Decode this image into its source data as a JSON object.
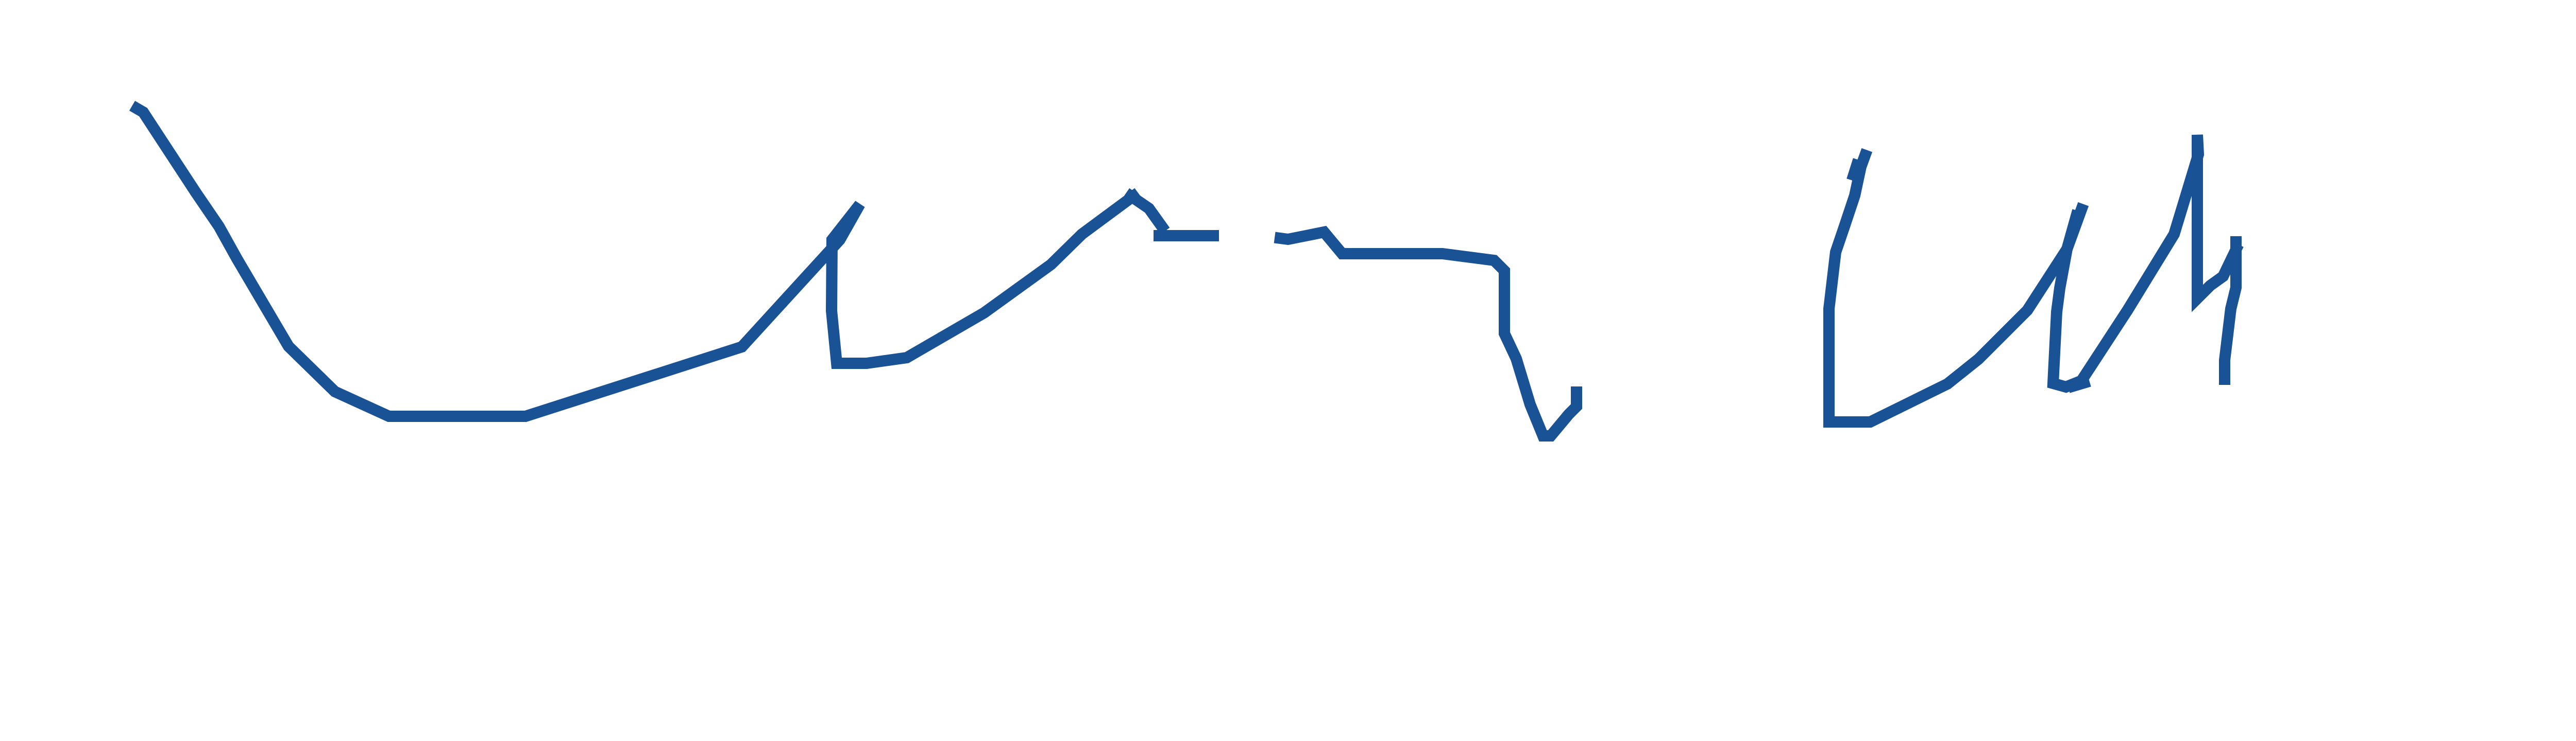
{
  "drawing": {
    "description_visible_text": "",
    "stroke_color": "#1a5296",
    "background_color": "#ffffff",
    "strokes": [
      {
        "name": "stroke-1"
      },
      {
        "name": "stroke-2"
      },
      {
        "name": "stroke-3"
      },
      {
        "name": "stroke-4"
      },
      {
        "name": "stroke-5"
      },
      {
        "name": "stroke-6"
      },
      {
        "name": "stroke-7"
      },
      {
        "name": "stroke-8"
      },
      {
        "name": "stroke-9"
      }
    ]
  }
}
